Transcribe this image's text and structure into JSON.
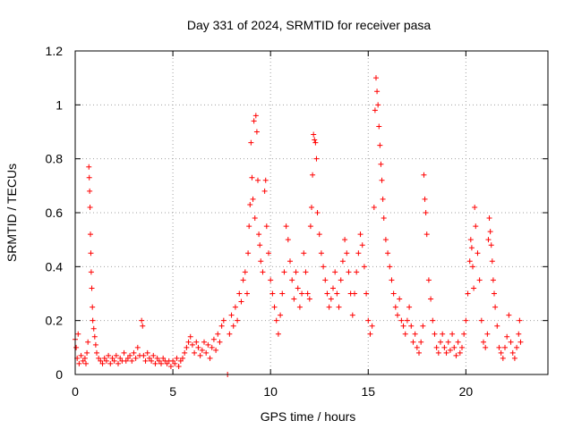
{
  "chart_data": {
    "type": "scatter",
    "title": "Day 331 of 2024, SRMTID for receiver pasa",
    "xlabel": "GPS time / hours",
    "ylabel": "SRMTID / TECUs",
    "xlim": [
      0,
      24.2
    ],
    "ylim": [
      0,
      1.2
    ],
    "x_ticks": [
      0,
      5,
      10,
      15,
      20
    ],
    "y_ticks": [
      0,
      0.2,
      0.4,
      0.6,
      0.8,
      1.0,
      1.2
    ],
    "x_tick_labels": [
      "0",
      "5",
      "10",
      "15",
      "20"
    ],
    "y_tick_labels": [
      "0",
      "0.2",
      "0.4",
      "0.6",
      "0.8",
      "1",
      "1.2"
    ],
    "grid": true,
    "marker": "+",
    "color": "#ff0000",
    "series": [
      {
        "name": "SRMTID",
        "points": [
          [
            0.0,
            0.13
          ],
          [
            0.05,
            0.1
          ],
          [
            0.1,
            0.06
          ],
          [
            0.15,
            0.15
          ],
          [
            0.2,
            0.04
          ],
          [
            0.3,
            0.07
          ],
          [
            0.4,
            0.05
          ],
          [
            0.5,
            0.06
          ],
          [
            0.55,
            0.04
          ],
          [
            0.6,
            0.08
          ],
          [
            0.65,
            0.12
          ],
          [
            0.7,
            0.77
          ],
          [
            0.72,
            0.73
          ],
          [
            0.74,
            0.68
          ],
          [
            0.76,
            0.62
          ],
          [
            0.78,
            0.52
          ],
          [
            0.8,
            0.45
          ],
          [
            0.82,
            0.38
          ],
          [
            0.85,
            0.32
          ],
          [
            0.88,
            0.25
          ],
          [
            0.9,
            0.2
          ],
          [
            0.95,
            0.17
          ],
          [
            1.0,
            0.14
          ],
          [
            1.05,
            0.11
          ],
          [
            1.1,
            0.08
          ],
          [
            1.2,
            0.06
          ],
          [
            1.3,
            0.05
          ],
          [
            1.4,
            0.04
          ],
          [
            1.5,
            0.06
          ],
          [
            1.6,
            0.05
          ],
          [
            1.7,
            0.07
          ],
          [
            1.8,
            0.04
          ],
          [
            1.9,
            0.06
          ],
          [
            2.0,
            0.05
          ],
          [
            2.1,
            0.07
          ],
          [
            2.2,
            0.04
          ],
          [
            2.3,
            0.06
          ],
          [
            2.4,
            0.05
          ],
          [
            2.5,
            0.08
          ],
          [
            2.6,
            0.05
          ],
          [
            2.7,
            0.06
          ],
          [
            2.8,
            0.07
          ],
          [
            2.9,
            0.05
          ],
          [
            3.0,
            0.08
          ],
          [
            3.1,
            0.06
          ],
          [
            3.2,
            0.1
          ],
          [
            3.3,
            0.07
          ],
          [
            3.4,
            0.2
          ],
          [
            3.45,
            0.18
          ],
          [
            3.5,
            0.07
          ],
          [
            3.6,
            0.05
          ],
          [
            3.7,
            0.08
          ],
          [
            3.8,
            0.06
          ],
          [
            3.9,
            0.05
          ],
          [
            4.0,
            0.07
          ],
          [
            4.1,
            0.04
          ],
          [
            4.2,
            0.06
          ],
          [
            4.3,
            0.05
          ],
          [
            4.4,
            0.04
          ],
          [
            4.5,
            0.06
          ],
          [
            4.6,
            0.05
          ],
          [
            4.7,
            0.04
          ],
          [
            4.8,
            0.05
          ],
          [
            4.9,
            0.03
          ],
          [
            5.0,
            0.05
          ],
          [
            5.1,
            0.04
          ],
          [
            5.2,
            0.06
          ],
          [
            5.3,
            0.03
          ],
          [
            5.4,
            0.05
          ],
          [
            5.5,
            0.06
          ],
          [
            5.6,
            0.08
          ],
          [
            5.7,
            0.1
          ],
          [
            5.8,
            0.12
          ],
          [
            5.9,
            0.14
          ],
          [
            6.0,
            0.11
          ],
          [
            6.1,
            0.08
          ],
          [
            6.2,
            0.12
          ],
          [
            6.3,
            0.1
          ],
          [
            6.4,
            0.07
          ],
          [
            6.5,
            0.09
          ],
          [
            6.6,
            0.12
          ],
          [
            6.7,
            0.08
          ],
          [
            6.8,
            0.11
          ],
          [
            6.9,
            0.06
          ],
          [
            7.0,
            0.1
          ],
          [
            7.1,
            0.13
          ],
          [
            7.2,
            0.09
          ],
          [
            7.3,
            0.15
          ],
          [
            7.4,
            0.12
          ],
          [
            7.5,
            0.18
          ],
          [
            7.6,
            0.2
          ],
          [
            7.8,
            0.0
          ],
          [
            7.9,
            0.15
          ],
          [
            8.0,
            0.22
          ],
          [
            8.1,
            0.18
          ],
          [
            8.2,
            0.25
          ],
          [
            8.3,
            0.2
          ],
          [
            8.4,
            0.3
          ],
          [
            8.5,
            0.27
          ],
          [
            8.6,
            0.35
          ],
          [
            8.7,
            0.38
          ],
          [
            8.8,
            0.3
          ],
          [
            8.85,
            0.45
          ],
          [
            8.9,
            0.55
          ],
          [
            8.95,
            0.63
          ],
          [
            9.0,
            0.86
          ],
          [
            9.05,
            0.73
          ],
          [
            9.1,
            0.65
          ],
          [
            9.15,
            0.94
          ],
          [
            9.2,
            0.58
          ],
          [
            9.25,
            0.96
          ],
          [
            9.3,
            0.9
          ],
          [
            9.35,
            0.72
          ],
          [
            9.4,
            0.52
          ],
          [
            9.45,
            0.48
          ],
          [
            9.5,
            0.42
          ],
          [
            9.6,
            0.38
          ],
          [
            9.7,
            0.68
          ],
          [
            9.75,
            0.72
          ],
          [
            9.8,
            0.55
          ],
          [
            9.9,
            0.45
          ],
          [
            10.0,
            0.35
          ],
          [
            10.1,
            0.3
          ],
          [
            10.2,
            0.25
          ],
          [
            10.3,
            0.2
          ],
          [
            10.4,
            0.15
          ],
          [
            10.5,
            0.22
          ],
          [
            10.6,
            0.3
          ],
          [
            10.7,
            0.38
          ],
          [
            10.8,
            0.55
          ],
          [
            10.9,
            0.5
          ],
          [
            11.0,
            0.42
          ],
          [
            11.1,
            0.35
          ],
          [
            11.2,
            0.28
          ],
          [
            11.3,
            0.38
          ],
          [
            11.4,
            0.32
          ],
          [
            11.5,
            0.25
          ],
          [
            11.6,
            0.3
          ],
          [
            11.7,
            0.45
          ],
          [
            11.8,
            0.38
          ],
          [
            11.9,
            0.3
          ],
          [
            12.0,
            0.28
          ],
          [
            12.05,
            0.55
          ],
          [
            12.1,
            0.62
          ],
          [
            12.15,
            0.74
          ],
          [
            12.2,
            0.89
          ],
          [
            12.25,
            0.87
          ],
          [
            12.3,
            0.86
          ],
          [
            12.35,
            0.8
          ],
          [
            12.4,
            0.6
          ],
          [
            12.5,
            0.52
          ],
          [
            12.6,
            0.45
          ],
          [
            12.7,
            0.4
          ],
          [
            12.8,
            0.35
          ],
          [
            12.9,
            0.3
          ],
          [
            13.0,
            0.25
          ],
          [
            13.1,
            0.28
          ],
          [
            13.2,
            0.32
          ],
          [
            13.3,
            0.38
          ],
          [
            13.4,
            0.3
          ],
          [
            13.5,
            0.25
          ],
          [
            13.6,
            0.35
          ],
          [
            13.7,
            0.42
          ],
          [
            13.8,
            0.5
          ],
          [
            13.9,
            0.45
          ],
          [
            14.0,
            0.38
          ],
          [
            14.1,
            0.3
          ],
          [
            14.2,
            0.22
          ],
          [
            14.3,
            0.3
          ],
          [
            14.4,
            0.38
          ],
          [
            14.5,
            0.45
          ],
          [
            14.6,
            0.52
          ],
          [
            14.7,
            0.48
          ],
          [
            14.8,
            0.4
          ],
          [
            14.9,
            0.3
          ],
          [
            15.0,
            0.2
          ],
          [
            15.1,
            0.15
          ],
          [
            15.2,
            0.18
          ],
          [
            15.3,
            0.62
          ],
          [
            15.35,
            0.98
          ],
          [
            15.4,
            1.1
          ],
          [
            15.45,
            1.05
          ],
          [
            15.5,
            1.0
          ],
          [
            15.55,
            0.92
          ],
          [
            15.6,
            0.85
          ],
          [
            15.65,
            0.78
          ],
          [
            15.7,
            0.72
          ],
          [
            15.75,
            0.65
          ],
          [
            15.8,
            0.58
          ],
          [
            15.9,
            0.5
          ],
          [
            16.0,
            0.45
          ],
          [
            16.1,
            0.4
          ],
          [
            16.2,
            0.35
          ],
          [
            16.3,
            0.3
          ],
          [
            16.4,
            0.25
          ],
          [
            16.5,
            0.22
          ],
          [
            16.6,
            0.28
          ],
          [
            16.7,
            0.2
          ],
          [
            16.8,
            0.18
          ],
          [
            16.9,
            0.15
          ],
          [
            17.0,
            0.2
          ],
          [
            17.1,
            0.25
          ],
          [
            17.2,
            0.18
          ],
          [
            17.3,
            0.12
          ],
          [
            17.4,
            0.15
          ],
          [
            17.5,
            0.1
          ],
          [
            17.6,
            0.08
          ],
          [
            17.7,
            0.12
          ],
          [
            17.8,
            0.18
          ],
          [
            17.85,
            0.74
          ],
          [
            17.9,
            0.65
          ],
          [
            17.95,
            0.6
          ],
          [
            18.0,
            0.52
          ],
          [
            18.1,
            0.35
          ],
          [
            18.2,
            0.28
          ],
          [
            18.3,
            0.2
          ],
          [
            18.4,
            0.15
          ],
          [
            18.5,
            0.1
          ],
          [
            18.6,
            0.08
          ],
          [
            18.7,
            0.12
          ],
          [
            18.8,
            0.15
          ],
          [
            18.9,
            0.1
          ],
          [
            19.0,
            0.08
          ],
          [
            19.1,
            0.12
          ],
          [
            19.2,
            0.09
          ],
          [
            19.3,
            0.15
          ],
          [
            19.4,
            0.1
          ],
          [
            19.5,
            0.07
          ],
          [
            19.6,
            0.12
          ],
          [
            19.7,
            0.08
          ],
          [
            19.8,
            0.1
          ],
          [
            19.9,
            0.15
          ],
          [
            20.0,
            0.2
          ],
          [
            20.1,
            0.3
          ],
          [
            20.2,
            0.42
          ],
          [
            20.25,
            0.5
          ],
          [
            20.3,
            0.47
          ],
          [
            20.35,
            0.4
          ],
          [
            20.4,
            0.32
          ],
          [
            20.45,
            0.62
          ],
          [
            20.5,
            0.55
          ],
          [
            20.6,
            0.45
          ],
          [
            20.7,
            0.35
          ],
          [
            20.8,
            0.2
          ],
          [
            20.9,
            0.12
          ],
          [
            21.0,
            0.1
          ],
          [
            21.1,
            0.15
          ],
          [
            21.15,
            0.5
          ],
          [
            21.2,
            0.58
          ],
          [
            21.25,
            0.53
          ],
          [
            21.3,
            0.48
          ],
          [
            21.35,
            0.42
          ],
          [
            21.4,
            0.35
          ],
          [
            21.45,
            0.3
          ],
          [
            21.5,
            0.25
          ],
          [
            21.6,
            0.18
          ],
          [
            21.7,
            0.1
          ],
          [
            21.8,
            0.08
          ],
          [
            21.9,
            0.06
          ],
          [
            22.0,
            0.1
          ],
          [
            22.1,
            0.14
          ],
          [
            22.2,
            0.22
          ],
          [
            22.3,
            0.12
          ],
          [
            22.4,
            0.08
          ],
          [
            22.5,
            0.06
          ],
          [
            22.6,
            0.1
          ],
          [
            22.7,
            0.15
          ],
          [
            22.75,
            0.2
          ],
          [
            22.8,
            0.12
          ]
        ]
      }
    ]
  }
}
